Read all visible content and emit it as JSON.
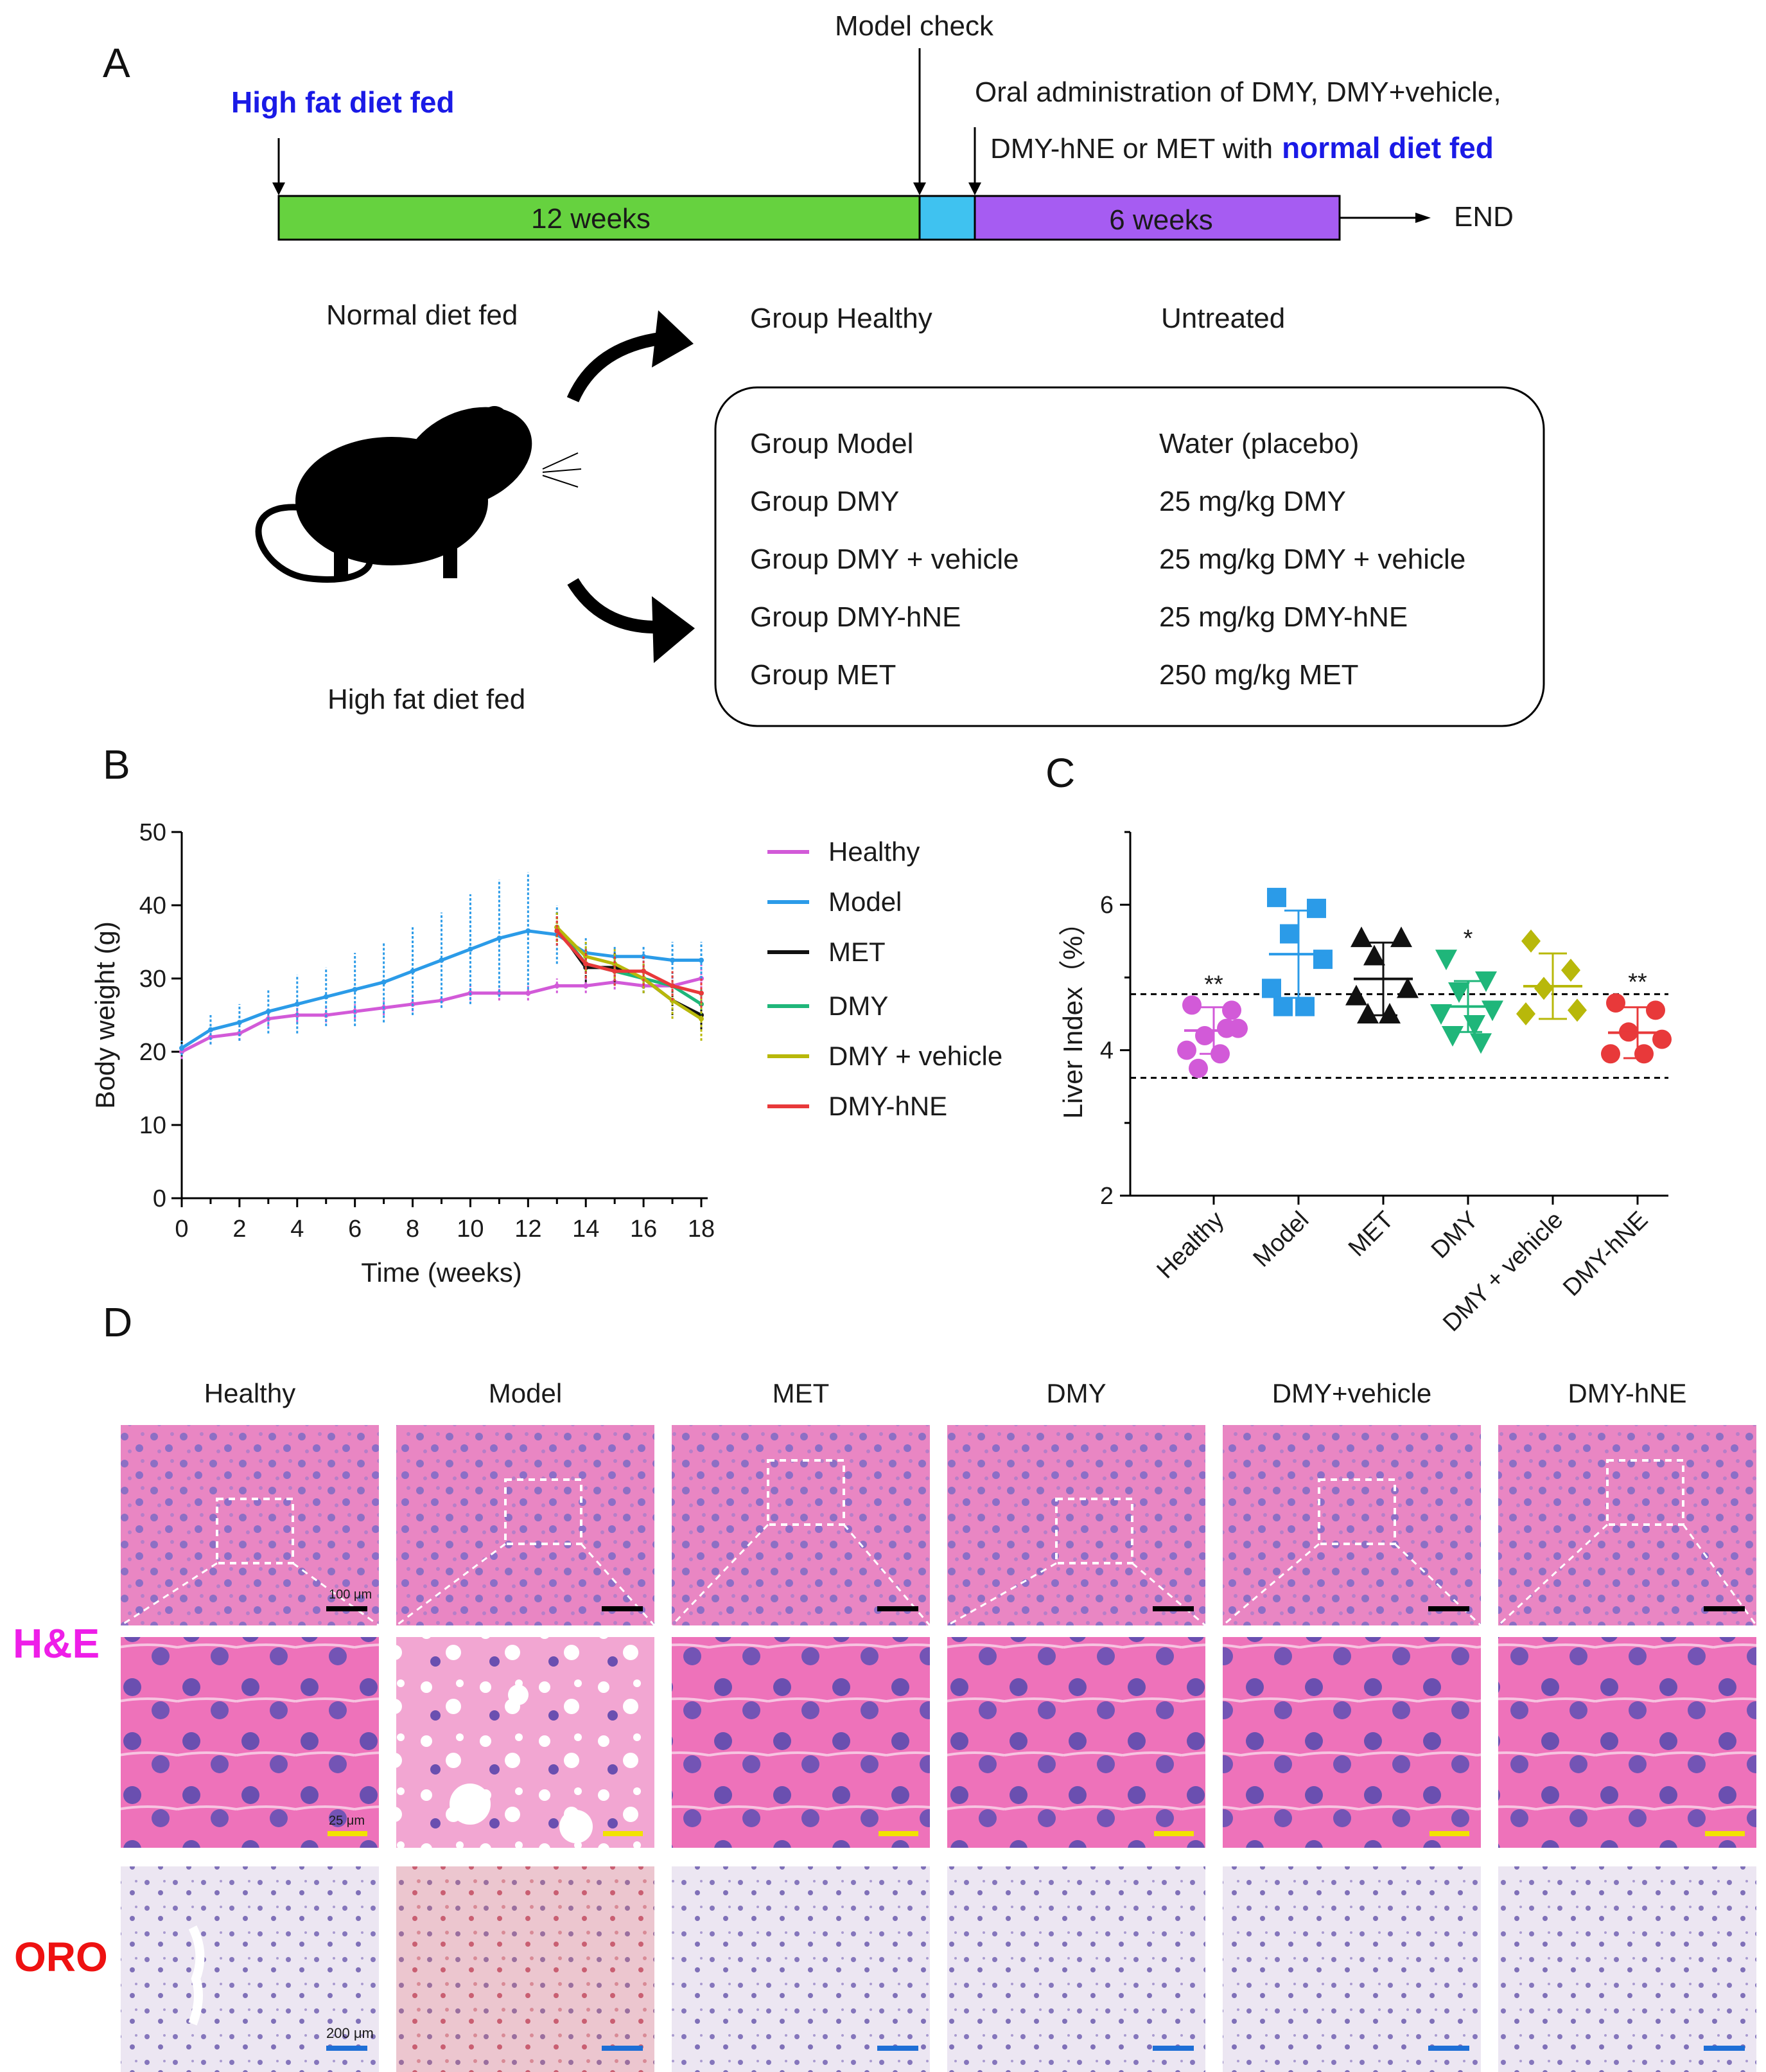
{
  "panels": {
    "a": "A",
    "b": "B",
    "c": "C",
    "d": "D"
  },
  "colors": {
    "healthy": "#d25ad8",
    "model": "#2b9be8",
    "met": "#111111",
    "dmy": "#1fb67a",
    "dmy_vehicle": "#b8b80a",
    "dmy_hne": "#e8393a",
    "green_bar": "#66d23f",
    "cyan_bar": "#3fc2f0",
    "purple_bar": "#a65cf2",
    "blue_text": "#1a1ae6",
    "he_label": "#ee1ee8",
    "oro_label": "#ee1111"
  },
  "timeline": {
    "hfd_label": "High fat diet fed",
    "model_check": "Model check",
    "oral_line1": "Oral administration of DMY, DMY+vehicle,",
    "oral_line2_prefix": "DMY-hNE or MET with",
    "oral_line2_bold": "normal diet fed",
    "phase1": "12 weeks",
    "phase2": "6 weeks",
    "end": "END"
  },
  "design": {
    "normal_diet": "Normal diet fed",
    "high_fat": "High fat diet fed",
    "healthy_group": "Group Healthy",
    "healthy_treatment": "Untreated",
    "groups": [
      {
        "name": "Group Model",
        "treatment": "Water (placebo)"
      },
      {
        "name": "Group DMY",
        "treatment": "25 mg/kg DMY"
      },
      {
        "name": "Group DMY + vehicle",
        "treatment": "25 mg/kg DMY + vehicle"
      },
      {
        "name": "Group DMY-hNE",
        "treatment": "25 mg/kg DMY-hNE"
      },
      {
        "name": "Group MET",
        "treatment": "250 mg/kg MET"
      }
    ]
  },
  "chart_data": [
    {
      "type": "line",
      "title": "",
      "xlabel": "Time (weeks)",
      "ylabel": "Body weight (g)",
      "xlim": [
        0,
        18
      ],
      "ylim": [
        0,
        50
      ],
      "xticks": [
        0,
        2,
        4,
        6,
        8,
        10,
        12,
        14,
        16,
        18
      ],
      "yticks": [
        0,
        10,
        20,
        30,
        40,
        50
      ],
      "legend": [
        "Healthy",
        "Model",
        "MET",
        "DMY",
        "DMY + vehicle",
        "DMY-hNE"
      ],
      "legend_position": "right",
      "series": [
        {
          "name": "Healthy",
          "color_key": "healthy",
          "x": [
            0,
            1,
            2,
            3,
            4,
            5,
            6,
            7,
            8,
            9,
            10,
            11,
            12,
            13,
            14,
            15,
            16,
            17,
            18
          ],
          "values": [
            20,
            22,
            22.5,
            24.5,
            25,
            25,
            25.5,
            26,
            26.5,
            27,
            28,
            28,
            28,
            29,
            29,
            29.5,
            29,
            29,
            30
          ],
          "errors": [
            1,
            1,
            1,
            1,
            1,
            1,
            1,
            1,
            1,
            1,
            1,
            1,
            1,
            1,
            1,
            1,
            1,
            1.5,
            2
          ]
        },
        {
          "name": "Model",
          "color_key": "model",
          "x": [
            0,
            1,
            2,
            3,
            4,
            5,
            6,
            7,
            8,
            9,
            10,
            11,
            12,
            13,
            14,
            15,
            16,
            17,
            18
          ],
          "values": [
            20.5,
            23,
            24,
            25.5,
            26.5,
            27.5,
            28.5,
            29.5,
            31,
            32.5,
            34,
            35.5,
            36.5,
            36,
            33.5,
            33,
            33,
            32.5,
            32.5
          ],
          "errors": [
            1,
            2,
            2.5,
            3,
            4,
            4,
            5,
            5.5,
            6,
            6.5,
            7.5,
            8,
            8,
            4,
            2,
            1.5,
            1.5,
            2.5,
            2.5
          ]
        },
        {
          "name": "MET",
          "color_key": "met",
          "x": [
            13,
            14,
            15,
            16,
            17,
            18
          ],
          "values": [
            37,
            31.5,
            31.5,
            30,
            27,
            25
          ],
          "errors": [
            2,
            2,
            2,
            2,
            2,
            2
          ]
        },
        {
          "name": "DMY",
          "color_key": "dmy",
          "x": [
            13,
            14,
            15,
            16,
            17,
            18
          ],
          "values": [
            37,
            32,
            31,
            30,
            29,
            26.5
          ],
          "errors": [
            2,
            2,
            2,
            2,
            2,
            2
          ]
        },
        {
          "name": "DMY + vehicle",
          "color_key": "dmy_vehicle",
          "x": [
            13,
            14,
            15,
            16,
            17,
            18
          ],
          "values": [
            37,
            33,
            32,
            30,
            27,
            24.5
          ],
          "errors": [
            2,
            2,
            2,
            2,
            2.5,
            3
          ]
        },
        {
          "name": "DMY-hNE",
          "color_key": "dmy_hne",
          "x": [
            13,
            14,
            15,
            16,
            17,
            18
          ],
          "values": [
            36.5,
            32,
            31,
            31,
            29,
            28
          ],
          "errors": [
            2,
            2,
            2,
            2,
            2,
            2
          ]
        }
      ]
    },
    {
      "type": "scatter",
      "title": "",
      "xlabel": "",
      "ylabel": "Liver Index（%）",
      "ylim": [
        2,
        7
      ],
      "yticks": [
        2,
        4,
        6
      ],
      "categories": [
        "Healthy",
        "Model",
        "MET",
        "DMY",
        "DMY + vehicle",
        "DMY-hNE"
      ],
      "reference_lines": [
        4.77,
        3.62
      ],
      "series": [
        {
          "name": "Healthy",
          "color_key": "healthy",
          "marker": "circle",
          "points": [
            4.62,
            4.55,
            4.2,
            4.3,
            4.0,
            3.95,
            3.75,
            4.3
          ],
          "mean": 4.27,
          "sd": 0.32,
          "significance": "**"
        },
        {
          "name": "Model",
          "color_key": "model",
          "marker": "square",
          "points": [
            6.1,
            5.95,
            5.6,
            5.25,
            4.85,
            4.6,
            4.6
          ],
          "mean": 5.32,
          "sd": 0.6,
          "significance": ""
        },
        {
          "name": "MET",
          "color_key": "met",
          "marker": "triangle-up",
          "points": [
            5.55,
            5.55,
            5.3,
            4.85,
            4.75,
            4.5,
            4.5
          ],
          "mean": 4.98,
          "sd": 0.5,
          "significance": ""
        },
        {
          "name": "DMY",
          "color_key": "dmy",
          "marker": "triangle-down",
          "points": [
            5.25,
            4.95,
            4.8,
            4.55,
            4.5,
            4.35,
            4.2,
            4.1
          ],
          "mean": 4.6,
          "sd": 0.35,
          "significance": "*"
        },
        {
          "name": "DMY + vehicle",
          "color_key": "dmy_vehicle",
          "marker": "diamond",
          "points": [
            5.5,
            5.1,
            4.85,
            4.55,
            4.5
          ],
          "mean": 4.88,
          "sd": 0.45,
          "significance": ""
        },
        {
          "name": "DMY-hNE",
          "color_key": "dmy_hne",
          "marker": "circle",
          "points": [
            4.65,
            4.55,
            4.25,
            4.15,
            3.95,
            3.95
          ],
          "mean": 4.24,
          "sd": 0.35,
          "significance": "**"
        }
      ]
    }
  ],
  "histology": {
    "columns": [
      "Healthy",
      "Model",
      "MET",
      "DMY",
      "DMY+vehicle",
      "DMY-hNE"
    ],
    "rows": {
      "he": "H&E",
      "oro": "ORO"
    },
    "scale_he_top": "100 μm",
    "scale_he_zoom": "25 μm",
    "scale_oro": "200 μm"
  }
}
